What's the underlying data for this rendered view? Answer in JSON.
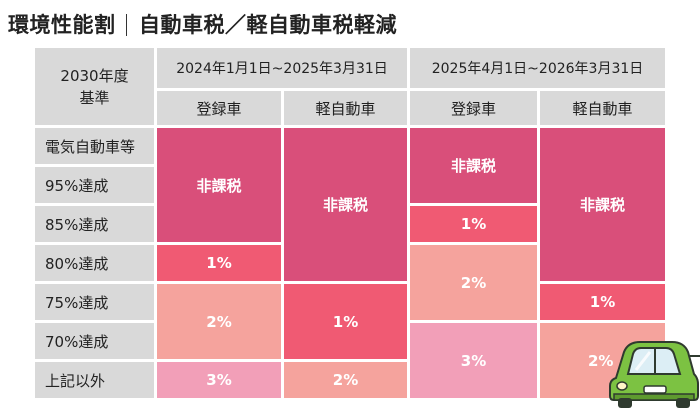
{
  "title": {
    "left": "環境性能割",
    "right": "自動車税／軽自動車税軽減"
  },
  "header": {
    "standard_line1": "2030年度",
    "standard_line2": "基準",
    "period1": "2024年1月1日~2025年3月31日",
    "period2": "2025年4月1日~2026年3月31日",
    "registered_car": "登録車",
    "kei_car": "軽自動車"
  },
  "rows": [
    "電気自動車等",
    "95%達成",
    "85%達成",
    "80%達成",
    "75%達成",
    "70%達成",
    "上記以外"
  ],
  "values": {
    "p1_reg_exempt": "非課税",
    "p1_reg_80": "1%",
    "p1_reg_75_70": "2%",
    "p1_reg_other": "3%",
    "p1_kei_exempt": "非課税",
    "p1_kei_75_70": "1%",
    "p1_kei_other": "2%",
    "p2_reg_exempt": "非課税",
    "p2_reg_85": "1%",
    "p2_reg_80_75": "2%",
    "p2_reg_70_other": "3%",
    "p2_kei_exempt": "非課税",
    "p2_kei_75": "1%",
    "p2_kei_70_other": "2%"
  },
  "colors": {
    "exempt": "#d94f7a",
    "one_percent": "#f05a73",
    "two_percent": "#f5a39d",
    "three_percent": "#f29fb8",
    "header_gray": "#d9d9d9"
  },
  "illustration": "green-car-icon"
}
